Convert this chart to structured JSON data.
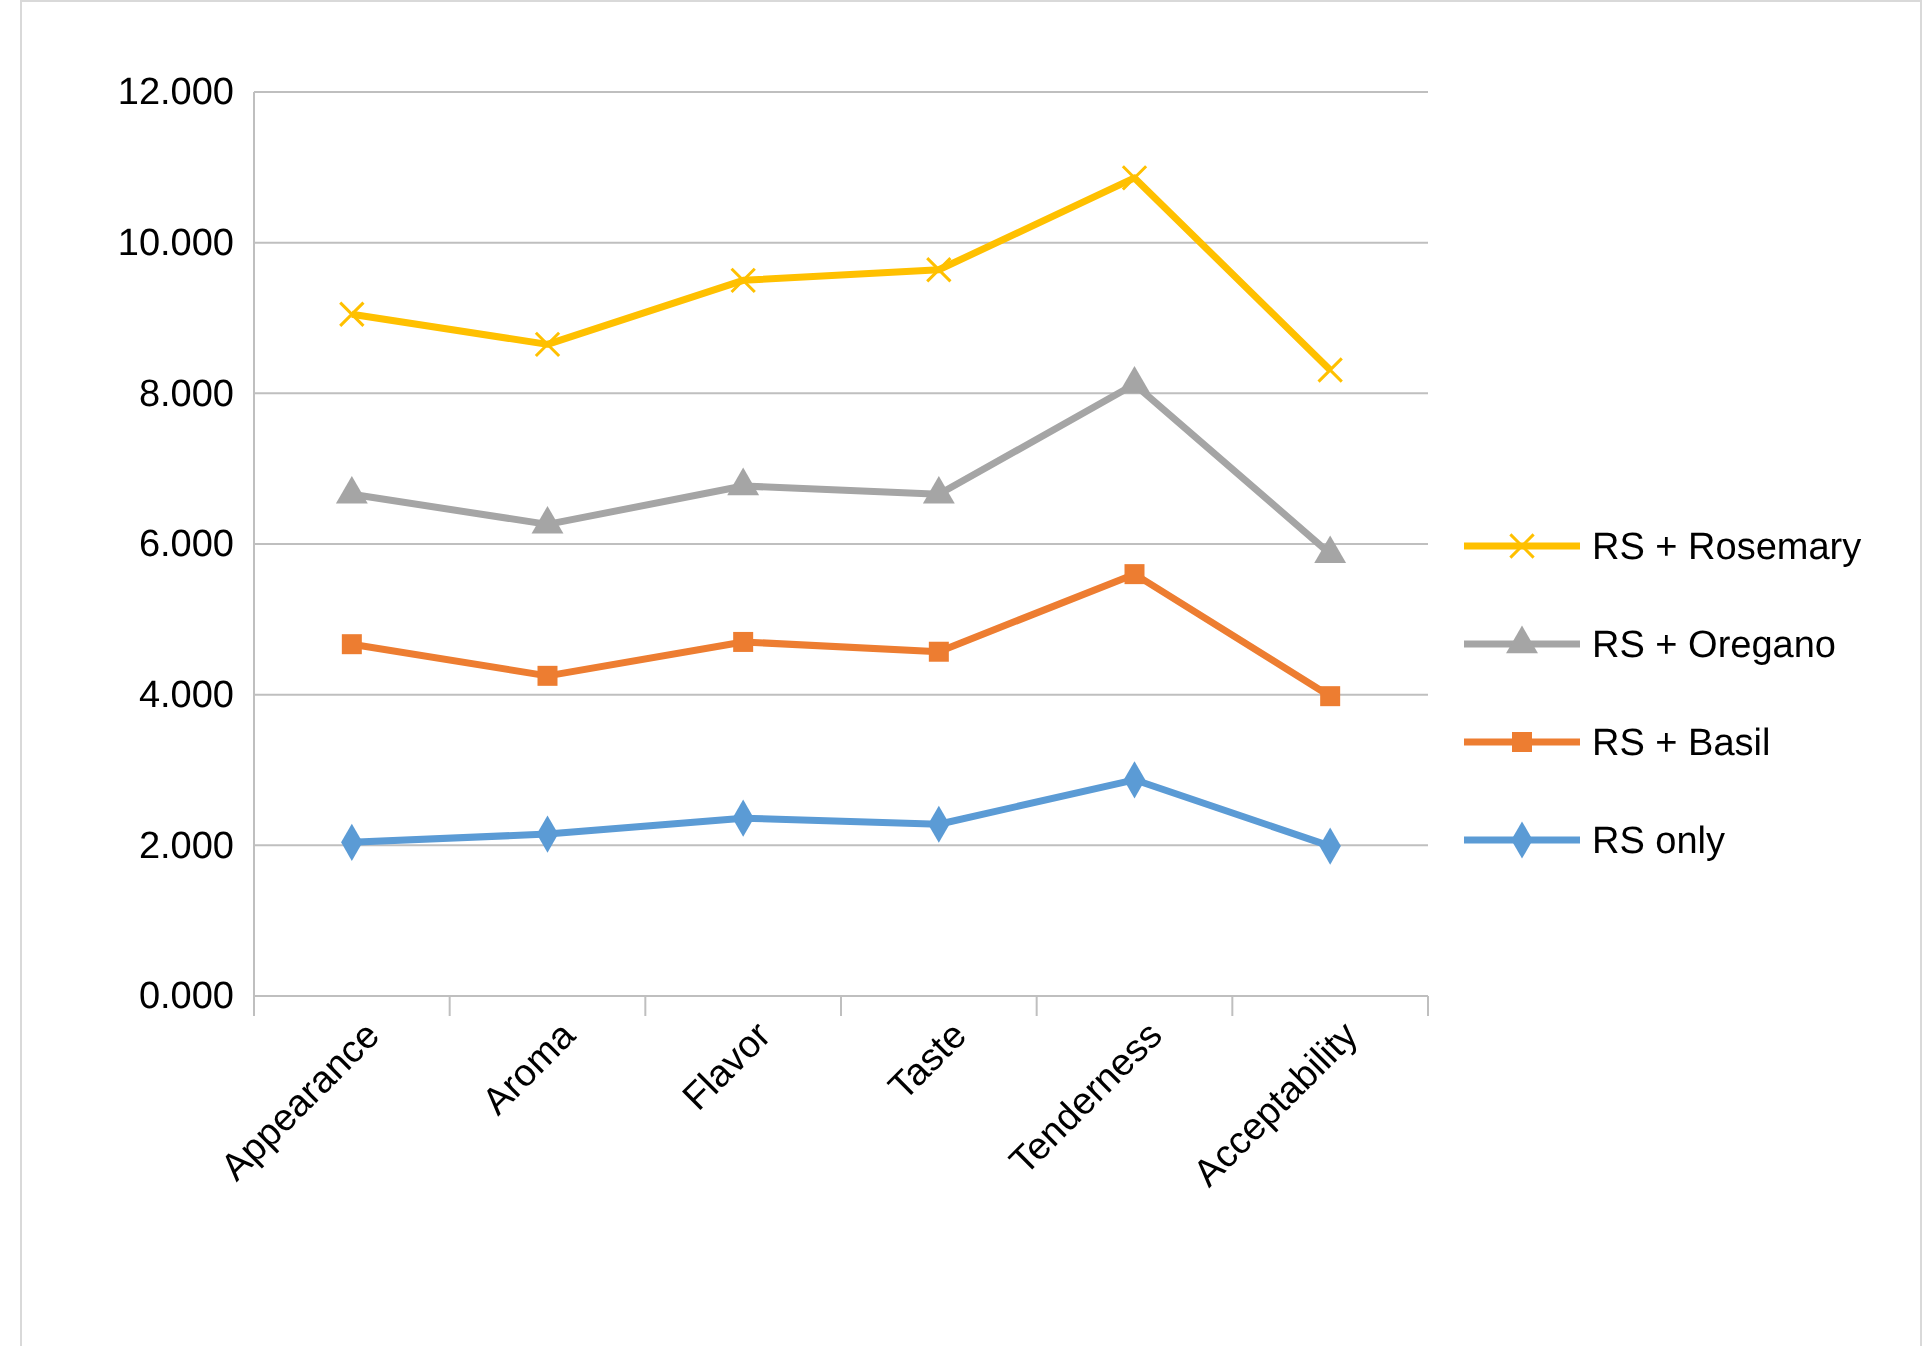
{
  "chart_data": {
    "type": "line",
    "categories": [
      "Appearance",
      "Aroma",
      "Flavor",
      "Taste",
      "Tenderness",
      "Acceptability"
    ],
    "series": [
      {
        "name": "RS + Rosemary",
        "color": "#ffc000",
        "marker": "cross",
        "values": [
          9.05,
          8.65,
          9.5,
          9.64,
          10.86,
          8.31
        ]
      },
      {
        "name": "RS + Oregano",
        "color": "#a5a5a5",
        "marker": "triangle",
        "values": [
          6.66,
          6.26,
          6.77,
          6.66,
          8.12,
          5.87
        ]
      },
      {
        "name": "RS + Basil",
        "color": "#ed7d31",
        "marker": "square",
        "values": [
          4.67,
          4.25,
          4.7,
          4.57,
          5.6,
          3.98
        ]
      },
      {
        "name": "RS only",
        "color": "#5b9bd5",
        "marker": "diamond",
        "values": [
          2.04,
          2.15,
          2.36,
          2.28,
          2.87,
          1.99
        ]
      }
    ],
    "ylim": [
      0,
      12
    ],
    "yticks": [
      {
        "value": 0,
        "label": "0.000"
      },
      {
        "value": 2,
        "label": "2.000"
      },
      {
        "value": 4,
        "label": "4.000"
      },
      {
        "value": 6,
        "label": "6.000"
      },
      {
        "value": 8,
        "label": "8.000"
      },
      {
        "value": 10,
        "label": "10.000"
      },
      {
        "value": 12,
        "label": "12.000"
      }
    ],
    "grid": "y",
    "legend": "right",
    "line_style": "solid"
  }
}
